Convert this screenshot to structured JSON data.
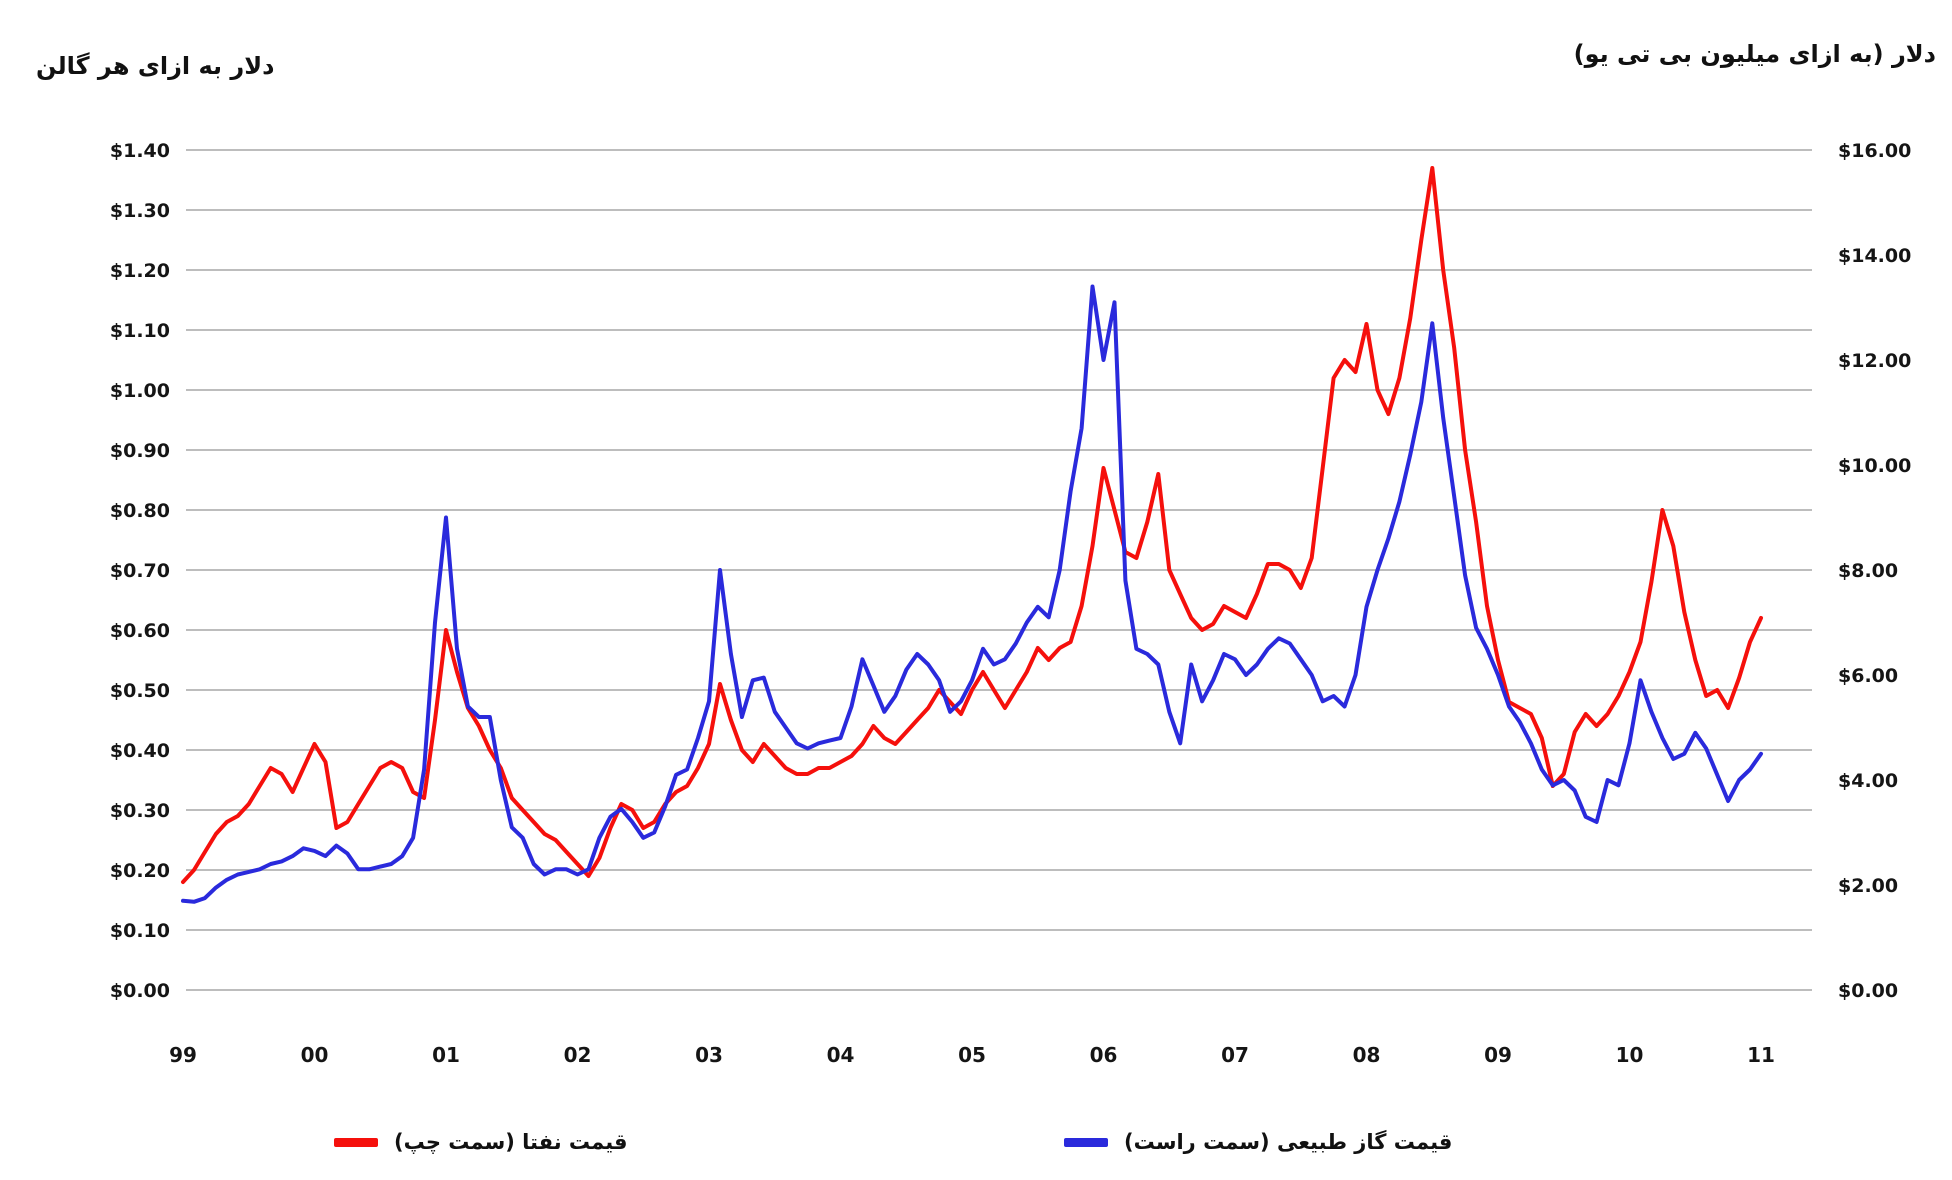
{
  "axis_titles": {
    "left": "دلار به ازای هر گالن",
    "right": "دلار (به ازای میلیون بی تی یو)"
  },
  "legend": {
    "naphtha_label": "قیمت نفتا (سمت چپ)",
    "gas_label": "قیمت گاز طبیعی (سمت راست)"
  },
  "colors": {
    "naphtha_red": "#F5100C",
    "gas_blue": "#2A2ADC",
    "gridline": "#BDBDBD",
    "text": "#151515"
  },
  "chart_data": {
    "type": "line",
    "title": "",
    "x_start_year": 1999,
    "x_end_year": 2011,
    "interval_months": 1,
    "x_tick_labels": [
      "99",
      "00",
      "01",
      "02",
      "03",
      "04",
      "05",
      "06",
      "07",
      "08",
      "09",
      "10",
      "11"
    ],
    "grid": "horizontal-only",
    "legend_position": "bottom",
    "left_axis": {
      "title": "دلار به ازای هر گالن",
      "min": 0.0,
      "max": 1.4,
      "tick_step": 0.1,
      "tick_labels": [
        "$0.00",
        "$0.10",
        "$0.20",
        "$0.30",
        "$0.40",
        "$0.50",
        "$0.60",
        "$0.70",
        "$0.80",
        "$0.90",
        "$1.00",
        "$1.10",
        "$1.20",
        "$1.30",
        "$1.40"
      ]
    },
    "right_axis": {
      "title": "دلار (به ازای میلیون بی تی یو)",
      "min": 0.0,
      "max": 16.0,
      "tick_step": 2.0,
      "tick_labels": [
        "$0.00",
        "$2.00",
        "$4.00",
        "$6.00",
        "$8.00",
        "$10.00",
        "$12.00",
        "$14.00",
        "$16.00"
      ]
    },
    "series": [
      {
        "name": "قیمت نفتا (سمت چپ)",
        "axis": "left",
        "color": "#F5100C",
        "start_year": 1999,
        "values": [
          0.18,
          0.2,
          0.23,
          0.26,
          0.28,
          0.29,
          0.31,
          0.34,
          0.37,
          0.36,
          0.33,
          0.37,
          0.41,
          0.38,
          0.27,
          0.28,
          0.31,
          0.34,
          0.37,
          0.38,
          0.37,
          0.33,
          0.32,
          0.45,
          0.6,
          0.53,
          0.47,
          0.44,
          0.4,
          0.37,
          0.32,
          0.3,
          0.28,
          0.26,
          0.25,
          0.23,
          0.21,
          0.19,
          0.22,
          0.27,
          0.31,
          0.3,
          0.27,
          0.28,
          0.31,
          0.33,
          0.34,
          0.37,
          0.41,
          0.51,
          0.45,
          0.4,
          0.38,
          0.41,
          0.39,
          0.37,
          0.36,
          0.36,
          0.37,
          0.37,
          0.38,
          0.39,
          0.41,
          0.44,
          0.42,
          0.41,
          0.43,
          0.45,
          0.47,
          0.5,
          0.48,
          0.46,
          0.5,
          0.53,
          0.5,
          0.47,
          0.5,
          0.53,
          0.57,
          0.55,
          0.57,
          0.58,
          0.64,
          0.74,
          0.87,
          0.8,
          0.73,
          0.72,
          0.78,
          0.86,
          0.7,
          0.66,
          0.62,
          0.6,
          0.61,
          0.64,
          0.63,
          0.62,
          0.66,
          0.71,
          0.71,
          0.7,
          0.67,
          0.72,
          0.87,
          1.02,
          1.05,
          1.03,
          1.11,
          1.0,
          0.96,
          1.02,
          1.12,
          1.25,
          1.37,
          1.2,
          1.07,
          0.9,
          0.78,
          0.64,
          0.55,
          0.48,
          0.47,
          0.46,
          0.42,
          0.34,
          0.36,
          0.43,
          0.46,
          0.44,
          0.46,
          0.49,
          0.53,
          0.58,
          0.68,
          0.8,
          0.74,
          0.63,
          0.55,
          0.49,
          0.5,
          0.47,
          0.52,
          0.58,
          0.62
        ]
      },
      {
        "name": "قیمت گاز طبیعی (سمت راست)",
        "axis": "right",
        "color": "#2A2ADC",
        "start_year": 1999,
        "values": [
          1.7,
          1.68,
          1.75,
          1.95,
          2.1,
          2.2,
          2.25,
          2.3,
          2.4,
          2.45,
          2.55,
          2.7,
          2.65,
          2.55,
          2.75,
          2.6,
          2.3,
          2.3,
          2.35,
          2.4,
          2.55,
          2.9,
          4.2,
          7.0,
          9.0,
          6.5,
          5.4,
          5.2,
          5.2,
          4.0,
          3.1,
          2.9,
          2.4,
          2.2,
          2.3,
          2.3,
          2.2,
          2.3,
          2.9,
          3.3,
          3.45,
          3.2,
          2.9,
          3.0,
          3.5,
          4.1,
          4.2,
          4.8,
          5.5,
          8.0,
          6.4,
          5.2,
          5.9,
          5.95,
          5.3,
          5.0,
          4.7,
          4.6,
          4.7,
          4.75,
          4.8,
          5.4,
          6.3,
          5.8,
          5.3,
          5.6,
          6.1,
          6.4,
          6.2,
          5.9,
          5.3,
          5.5,
          5.9,
          6.5,
          6.2,
          6.3,
          6.6,
          7.0,
          7.3,
          7.1,
          8.0,
          9.5,
          10.7,
          13.4,
          12.0,
          13.1,
          7.8,
          6.5,
          6.4,
          6.2,
          5.3,
          4.7,
          6.2,
          5.5,
          5.9,
          6.4,
          6.3,
          6.0,
          6.2,
          6.5,
          6.7,
          6.6,
          6.3,
          6.0,
          5.5,
          5.6,
          5.4,
          6.0,
          7.3,
          8.0,
          8.6,
          9.3,
          10.2,
          11.2,
          12.7,
          10.9,
          9.4,
          7.9,
          6.9,
          6.5,
          6.0,
          5.4,
          5.1,
          4.7,
          4.2,
          3.9,
          4.0,
          3.8,
          3.3,
          3.2,
          4.0,
          3.9,
          4.7,
          5.9,
          5.3,
          4.8,
          4.4,
          4.5,
          4.9,
          4.6,
          4.1,
          3.6,
          4.0,
          4.2,
          4.5
        ]
      }
    ]
  }
}
